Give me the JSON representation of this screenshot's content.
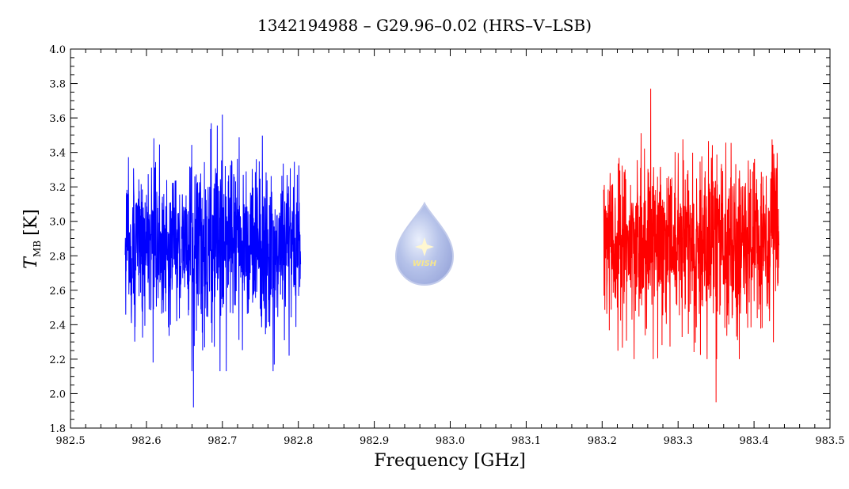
{
  "chart_data": {
    "type": "line",
    "title": "1342194988 – G29.96–0.02 (HRS–V–LSB)",
    "xlabel": "Frequency [GHz]",
    "ylabel": {
      "symbol": "T",
      "subscript": "MB",
      "unit": "[K]"
    },
    "xlim": [
      982.5,
      983.5
    ],
    "ylim": [
      1.8,
      4.0
    ],
    "x_ticks": [
      "982.5",
      "982.6",
      "982.7",
      "982.8",
      "982.9",
      "983.0",
      "983.1",
      "983.2",
      "983.3",
      "983.4",
      "983.5"
    ],
    "y_ticks": [
      "1.8",
      "2.0",
      "2.2",
      "2.4",
      "2.6",
      "2.8",
      "3.0",
      "3.2",
      "3.4",
      "3.6",
      "3.8",
      "4.0"
    ],
    "grid": false,
    "series": [
      {
        "color": "#0000ff",
        "x_start": 982.572,
        "x_end": 982.803,
        "mean": 2.86,
        "envelope": [
          2.13,
          3.62
        ],
        "min_point": [
          982.662,
          1.92
        ],
        "max_point": [
          982.7,
          3.62
        ]
      },
      {
        "color": "#ff0000",
        "x_start": 983.202,
        "x_end": 983.433,
        "mean": 2.87,
        "envelope": [
          2.2,
          3.72
        ],
        "min_point": [
          983.35,
          1.95
        ],
        "max_point": [
          983.264,
          3.77
        ]
      }
    ]
  },
  "logo": {
    "text": "WISH"
  }
}
